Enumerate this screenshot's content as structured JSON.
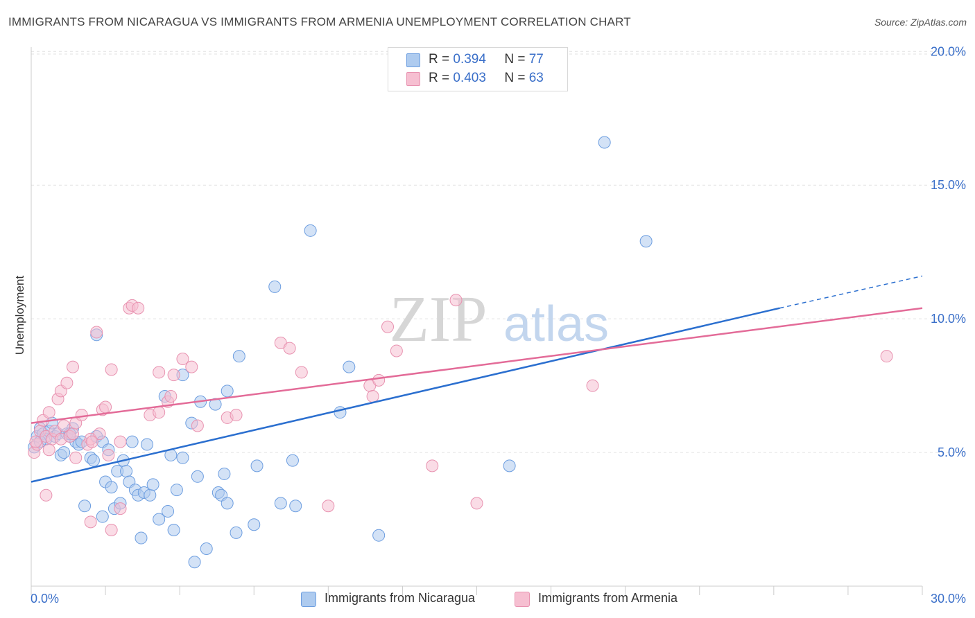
{
  "header": {
    "title": "IMMIGRANTS FROM NICARAGUA VS IMMIGRANTS FROM ARMENIA UNEMPLOYMENT CORRELATION CHART",
    "source": "Source: ZipAtlas.com"
  },
  "watermark": {
    "zip": "ZIP",
    "atlas": "atlas"
  },
  "legend": {
    "rows": [
      {
        "r_label": "R =",
        "r_value": "0.394",
        "n_label": "N =",
        "n_value": "77"
      },
      {
        "r_label": "R =",
        "r_value": "0.403",
        "n_label": "N =",
        "n_value": "63"
      }
    ]
  },
  "bottom_legend": {
    "items": [
      {
        "label": "Immigrants from Nicaragua"
      },
      {
        "label": "Immigrants from Armenia"
      }
    ]
  },
  "colors": {
    "blue_fill": "#aecbef",
    "blue_stroke": "#6d9ee0",
    "blue_line": "#2b6fcf",
    "pink_fill": "#f6bfd1",
    "pink_stroke": "#e892b0",
    "pink_line": "#e36b98",
    "axis_label": "#3a6fc9",
    "grid": "#e2e2e2"
  },
  "chart_data": {
    "type": "scatter",
    "title": "IMMIGRANTS FROM NICARAGUA VS IMMIGRANTS FROM ARMENIA UNEMPLOYMENT CORRELATION CHART",
    "xlabel": "",
    "ylabel": "Unemployment",
    "xlim": [
      0,
      30
    ],
    "ylim": [
      0,
      20.5
    ],
    "x_tick_labels": [
      "0.0%",
      "30.0%"
    ],
    "y_ticks": [
      5,
      10,
      15,
      20
    ],
    "y_tick_labels": [
      "5.0%",
      "10.0%",
      "15.0%",
      "20.0%"
    ],
    "grid": "horizontal dashed",
    "series": [
      {
        "name": "Immigrants from Nicaragua",
        "R": 0.394,
        "N": 77,
        "trend": {
          "x": [
            0,
            25.2
          ],
          "y": [
            3.9,
            10.4
          ],
          "dashed_extension": {
            "x": [
              25.2,
              30
            ],
            "y": [
              10.4,
              11.6
            ]
          }
        },
        "points": [
          [
            0.2,
            5.6
          ],
          [
            0.3,
            5.9
          ],
          [
            0.4,
            5.7
          ],
          [
            0.5,
            5.5
          ],
          [
            0.6,
            5.8
          ],
          [
            0.7,
            6.1
          ],
          [
            0.8,
            5.6
          ],
          [
            0.9,
            5.7
          ],
          [
            1.0,
            4.9
          ],
          [
            1.1,
            5.0
          ],
          [
            1.2,
            5.7
          ],
          [
            1.3,
            5.6
          ],
          [
            1.4,
            5.9
          ],
          [
            1.5,
            5.4
          ],
          [
            1.6,
            5.3
          ],
          [
            1.7,
            5.4
          ],
          [
            1.8,
            3.0
          ],
          [
            2.0,
            4.8
          ],
          [
            2.1,
            4.7
          ],
          [
            2.2,
            5.6
          ],
          [
            2.2,
            9.4
          ],
          [
            2.4,
            5.4
          ],
          [
            2.4,
            2.6
          ],
          [
            2.5,
            3.9
          ],
          [
            2.6,
            5.1
          ],
          [
            2.7,
            3.7
          ],
          [
            2.8,
            2.9
          ],
          [
            2.9,
            4.3
          ],
          [
            3.0,
            3.1
          ],
          [
            3.1,
            4.7
          ],
          [
            3.2,
            4.3
          ],
          [
            3.3,
            3.9
          ],
          [
            3.4,
            5.4
          ],
          [
            3.5,
            3.6
          ],
          [
            3.6,
            3.4
          ],
          [
            3.7,
            1.8
          ],
          [
            3.8,
            3.5
          ],
          [
            3.9,
            5.3
          ],
          [
            4.0,
            3.4
          ],
          [
            4.1,
            3.8
          ],
          [
            4.3,
            2.5
          ],
          [
            4.5,
            7.1
          ],
          [
            4.6,
            2.8
          ],
          [
            4.7,
            4.9
          ],
          [
            4.8,
            2.1
          ],
          [
            4.9,
            3.6
          ],
          [
            5.1,
            4.8
          ],
          [
            5.1,
            7.9
          ],
          [
            5.4,
            6.1
          ],
          [
            5.5,
            0.9
          ],
          [
            5.6,
            4.1
          ],
          [
            5.7,
            6.9
          ],
          [
            5.9,
            1.4
          ],
          [
            6.2,
            6.8
          ],
          [
            6.3,
            3.5
          ],
          [
            6.4,
            3.4
          ],
          [
            6.5,
            4.2
          ],
          [
            6.6,
            7.3
          ],
          [
            6.6,
            3.1
          ],
          [
            6.9,
            2.0
          ],
          [
            7.0,
            8.6
          ],
          [
            7.5,
            2.3
          ],
          [
            7.6,
            4.5
          ],
          [
            8.2,
            11.2
          ],
          [
            8.4,
            3.1
          ],
          [
            8.8,
            4.7
          ],
          [
            8.9,
            3.0
          ],
          [
            9.4,
            13.3
          ],
          [
            10.4,
            6.5
          ],
          [
            10.7,
            8.2
          ],
          [
            11.7,
            1.9
          ],
          [
            16.1,
            4.5
          ],
          [
            19.3,
            16.6
          ],
          [
            20.7,
            12.9
          ],
          [
            0.1,
            5.2
          ],
          [
            0.3,
            5.4
          ],
          [
            1.3,
            5.7
          ]
        ]
      },
      {
        "name": "Immigrants from Armenia",
        "R": 0.403,
        "N": 63,
        "trend": {
          "x": [
            0,
            30
          ],
          "y": [
            6.1,
            10.4
          ]
        },
        "points": [
          [
            0.1,
            5.0
          ],
          [
            0.2,
            5.3
          ],
          [
            0.3,
            5.8
          ],
          [
            0.4,
            6.2
          ],
          [
            0.5,
            5.6
          ],
          [
            0.5,
            3.4
          ],
          [
            0.6,
            6.5
          ],
          [
            0.7,
            5.5
          ],
          [
            0.8,
            5.8
          ],
          [
            0.9,
            7.0
          ],
          [
            1.0,
            5.5
          ],
          [
            1.0,
            7.3
          ],
          [
            1.1,
            6.0
          ],
          [
            1.2,
            7.6
          ],
          [
            1.3,
            5.6
          ],
          [
            1.4,
            5.7
          ],
          [
            1.4,
            8.2
          ],
          [
            1.5,
            6.1
          ],
          [
            1.5,
            4.8
          ],
          [
            1.7,
            6.4
          ],
          [
            1.9,
            5.3
          ],
          [
            2.0,
            5.5
          ],
          [
            2.0,
            2.4
          ],
          [
            2.2,
            9.5
          ],
          [
            2.3,
            5.7
          ],
          [
            2.4,
            6.6
          ],
          [
            2.5,
            6.7
          ],
          [
            2.6,
            4.9
          ],
          [
            2.7,
            8.1
          ],
          [
            2.7,
            2.1
          ],
          [
            3.0,
            5.4
          ],
          [
            3.0,
            2.9
          ],
          [
            3.3,
            10.4
          ],
          [
            3.4,
            10.5
          ],
          [
            3.6,
            10.4
          ],
          [
            4.0,
            6.4
          ],
          [
            4.3,
            6.5
          ],
          [
            4.3,
            8.0
          ],
          [
            4.6,
            6.9
          ],
          [
            4.7,
            7.1
          ],
          [
            4.8,
            7.9
          ],
          [
            5.1,
            8.5
          ],
          [
            5.4,
            8.2
          ],
          [
            5.6,
            6.0
          ],
          [
            6.6,
            6.3
          ],
          [
            6.9,
            6.4
          ],
          [
            8.4,
            9.1
          ],
          [
            8.7,
            8.9
          ],
          [
            9.1,
            8.0
          ],
          [
            10.0,
            3.0
          ],
          [
            11.4,
            7.5
          ],
          [
            11.5,
            7.1
          ],
          [
            11.7,
            7.7
          ],
          [
            12.0,
            9.7
          ],
          [
            12.3,
            8.8
          ],
          [
            13.5,
            4.5
          ],
          [
            14.3,
            10.7
          ],
          [
            15.0,
            3.1
          ],
          [
            18.9,
            7.5
          ],
          [
            28.8,
            8.6
          ],
          [
            0.15,
            5.4
          ],
          [
            0.6,
            5.1
          ],
          [
            2.05,
            5.4
          ]
        ]
      }
    ]
  }
}
